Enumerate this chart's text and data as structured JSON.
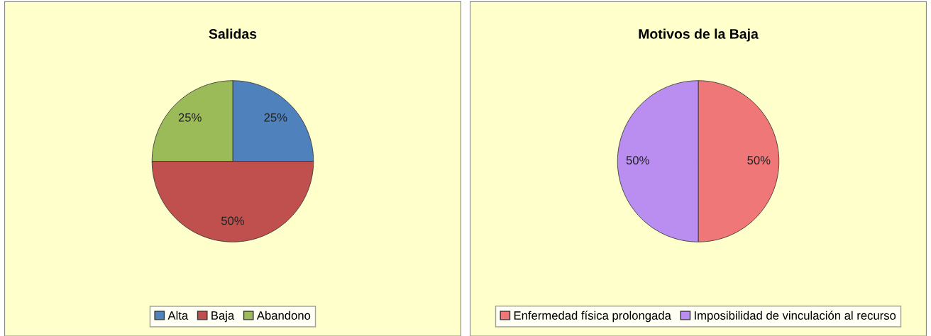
{
  "chart_data": [
    {
      "type": "pie",
      "title": "Salidas",
      "categories": [
        "Alta",
        "Baja",
        "Abandono"
      ],
      "values": [
        25,
        50,
        25
      ],
      "colors": [
        "#4f81bd",
        "#c0504d",
        "#9bbb59"
      ],
      "value_labels": [
        "25%",
        "50%",
        "25%"
      ],
      "legend": "bottom"
    },
    {
      "type": "pie",
      "title": "Motivos de la Baja",
      "categories": [
        "Enfermedad física prolongada",
        "Imposibilidad de vinculación al recurso"
      ],
      "values": [
        50,
        50
      ],
      "colors": [
        "#ef7777",
        "#b98ef0"
      ],
      "value_labels": [
        "50%",
        "50%"
      ],
      "legend": "bottom"
    }
  ]
}
